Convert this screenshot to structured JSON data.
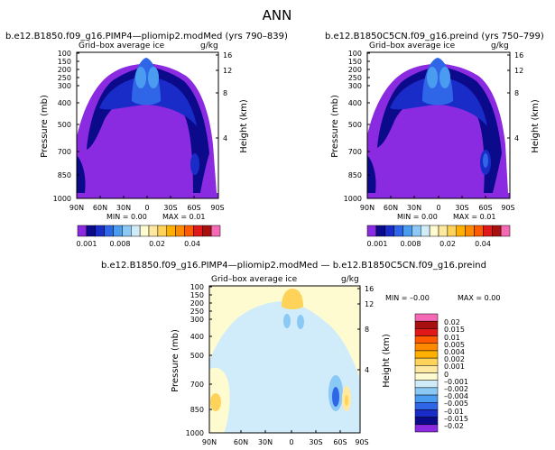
{
  "figure_title": "ANN",
  "chart_data": [
    {
      "type": "heatmap",
      "title": "b.e12.B1850.f09_g16.PIMP4—pliomip2.modMed (yrs 790–839)",
      "subtitle": "Grid–box average ice",
      "units": "g/kg",
      "xlabel": "",
      "ylabel": "Pressure (mb)",
      "y2label": "Height (km)",
      "x_ticks": [
        "90N",
        "60N",
        "30N",
        "0",
        "30S",
        "60S",
        "90S"
      ],
      "y_ticks": [
        "100",
        "150",
        "200",
        "250",
        "300",
        "400",
        "500",
        "700",
        "850",
        "1000"
      ],
      "y_tick_values": [
        100,
        150,
        200,
        250,
        300,
        400,
        500,
        700,
        850,
        1000
      ],
      "height_ticks": [
        "16",
        "12",
        "8",
        "4"
      ],
      "height_tick_values": [
        16,
        12,
        8,
        4
      ],
      "xlim": [
        90,
        -90
      ],
      "ylim": [
        1000,
        100
      ],
      "min_label": "MIN = 0.00",
      "max_label": "MAX = 0.01",
      "colorbar_labels": [
        "0.001",
        "0.008",
        "0.02",
        "0.04"
      ],
      "colorbar_colors": [
        "#8a2be2",
        "#0a0a8a",
        "#1a2cc8",
        "#2f66e8",
        "#4a9cf0",
        "#8ac8f5",
        "#d0ecfb",
        "#fffbd0",
        "#ffe8a0",
        "#ffd35a",
        "#ffb000",
        "#ff8a00",
        "#ff5a00",
        "#e01818",
        "#a81010",
        "#f569b4"
      ]
    },
    {
      "type": "heatmap",
      "title": "b.e12.B1850C5CN.f09_g16.preind (yrs 750–799)",
      "subtitle": "Grid–box average ice",
      "units": "g/kg",
      "xlabel": "",
      "ylabel": "Pressure (mb)",
      "y2label": "Height (km)",
      "x_ticks": [
        "90N",
        "60N",
        "30N",
        "0",
        "30S",
        "60S",
        "90S"
      ],
      "y_ticks": [
        "100",
        "150",
        "200",
        "250",
        "300",
        "400",
        "500",
        "700",
        "850",
        "1000"
      ],
      "y_tick_values": [
        100,
        150,
        200,
        250,
        300,
        400,
        500,
        700,
        850,
        1000
      ],
      "height_ticks": [
        "16",
        "12",
        "8",
        "4"
      ],
      "height_tick_values": [
        16,
        12,
        8,
        4
      ],
      "xlim": [
        90,
        -90
      ],
      "ylim": [
        1000,
        100
      ],
      "min_label": "MIN = 0.00",
      "max_label": "MAX = 0.01",
      "colorbar_labels": [
        "0.001",
        "0.008",
        "0.02",
        "0.04"
      ],
      "colorbar_colors": [
        "#8a2be2",
        "#0a0a8a",
        "#1a2cc8",
        "#2f66e8",
        "#4a9cf0",
        "#8ac8f5",
        "#d0ecfb",
        "#fffbd0",
        "#ffe8a0",
        "#ffd35a",
        "#ffb000",
        "#ff8a00",
        "#ff5a00",
        "#e01818",
        "#a81010",
        "#f569b4"
      ]
    },
    {
      "type": "heatmap",
      "title": "b.e12.B1850.f09_g16.PIMP4—pliomip2.modMed — b.e12.B1850C5CN.f09_g16.preind",
      "subtitle": "Grid–box average ice",
      "units": "g/kg",
      "xlabel": "",
      "ylabel": "Pressure (mb)",
      "y2label": "Height (km)",
      "x_ticks": [
        "90N",
        "60N",
        "30N",
        "0",
        "30S",
        "60S",
        "90S"
      ],
      "y_ticks": [
        "100",
        "150",
        "200",
        "250",
        "300",
        "400",
        "500",
        "700",
        "850",
        "1000"
      ],
      "y_tick_values": [
        100,
        150,
        200,
        250,
        300,
        400,
        500,
        700,
        850,
        1000
      ],
      "height_ticks": [
        "16",
        "12",
        "8",
        "4"
      ],
      "height_tick_values": [
        16,
        12,
        8,
        4
      ],
      "xlim": [
        90,
        -90
      ],
      "ylim": [
        1000,
        100
      ],
      "min_label": "MIN = –0.00",
      "max_label": "MAX = 0.00",
      "colorbar_labels": [
        "0.02",
        "0.015",
        "0.01",
        "0.005",
        "0.004",
        "0.002",
        "0.001",
        "0",
        "–0.001",
        "–0.002",
        "–0.004",
        "–0.005",
        "–0.01",
        "–0.015",
        "–0.02"
      ],
      "colorbar_colors": [
        "#f569b4",
        "#a81010",
        "#e01818",
        "#ff5a00",
        "#ff8a00",
        "#ffb000",
        "#ffd35a",
        "#ffe8a0",
        "#fffbd0",
        "#d0ecfb",
        "#8ac8f5",
        "#4a9cf0",
        "#2f66e8",
        "#1a2cc8",
        "#0a0a8a",
        "#8a2be2"
      ]
    }
  ]
}
